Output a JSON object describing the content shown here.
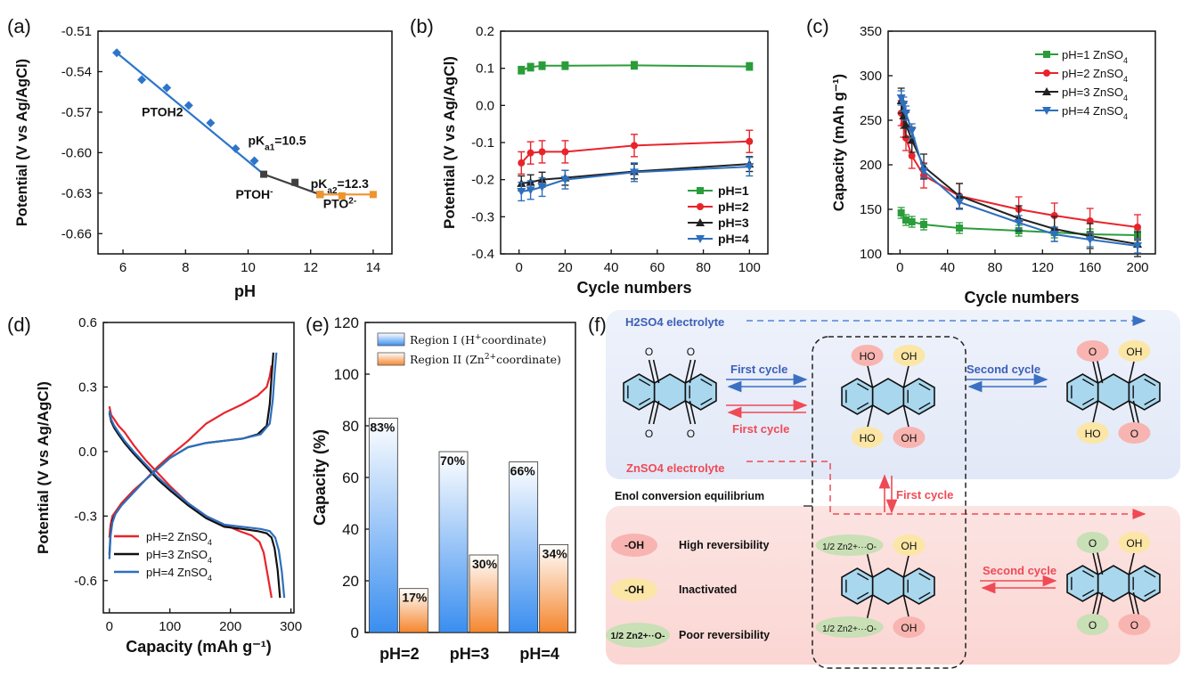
{
  "panels": {
    "a": {
      "label": "(a)"
    },
    "b": {
      "label": "(b)"
    },
    "c": {
      "label": "(c)"
    },
    "d": {
      "label": "(d)"
    },
    "e": {
      "label": "(e)"
    },
    "f": {
      "label": "(f)"
    }
  },
  "chart_data": [
    {
      "id": "a",
      "type": "line",
      "xlabel": "pH",
      "ylabel": "Potential (V vs Ag/AgCl)",
      "xlim": [
        5.2,
        14.6
      ],
      "ylim": [
        -0.675,
        -0.51
      ],
      "xticks": [
        6,
        8,
        10,
        12,
        14
      ],
      "yticks": [
        -0.51,
        -0.54,
        -0.57,
        -0.6,
        -0.63,
        -0.66
      ],
      "ytick_labels": [
        "-0.51",
        "-0.54",
        "-0.57",
        "-0.60",
        "-0.63",
        "-0.66"
      ],
      "series": [
        {
          "color": "#2e75c9",
          "marker": "diamond",
          "x": [
            5.8,
            6.6,
            7.4,
            8.1,
            8.8,
            9.6,
            10.2
          ],
          "y": [
            -0.526,
            -0.546,
            -0.552,
            -0.565,
            -0.578,
            -0.597,
            -0.606
          ]
        },
        {
          "color": "#404040",
          "marker": "square",
          "x": [
            10.5,
            11.5,
            12.3
          ],
          "y": [
            -0.616,
            -0.622,
            -0.631
          ]
        },
        {
          "color": "#f0932b",
          "marker": "square",
          "x": [
            12.3,
            13.0,
            14.0
          ],
          "y": [
            -0.631,
            -0.632,
            -0.631
          ]
        }
      ],
      "fit_lines": [
        {
          "color": "#2e75c9",
          "x": [
            5.8,
            10.5
          ],
          "y": [
            -0.526,
            -0.616
          ]
        },
        {
          "color": "#404040",
          "x": [
            10.5,
            12.3
          ],
          "y": [
            -0.616,
            -0.631
          ]
        },
        {
          "color": "#f0932b",
          "x": [
            12.3,
            14.0
          ],
          "y": [
            -0.631,
            -0.631
          ]
        }
      ],
      "annotations": [
        {
          "text": "PTOH2",
          "x": 6.6,
          "y": -0.573
        },
        {
          "text": "pKa1=10.5",
          "x": 10.0,
          "y": -0.594
        },
        {
          "text": "PTOH-",
          "x": 9.6,
          "y": -0.634
        },
        {
          "text": "pKa2=12.3",
          "x": 12.0,
          "y": -0.626
        },
        {
          "text": "PTO2-",
          "x": 12.4,
          "y": -0.641
        }
      ]
    },
    {
      "id": "b",
      "type": "line",
      "xlabel": "Cycle numbers",
      "ylabel": "Potential (V vs Ag/AgCl)",
      "xlim": [
        -8,
        108
      ],
      "ylim": [
        -0.4,
        0.2
      ],
      "xticks": [
        0,
        20,
        40,
        60,
        80,
        100
      ],
      "yticks": [
        0.2,
        0.1,
        0.0,
        -0.1,
        -0.2,
        -0.3,
        -0.4
      ],
      "ytick_labels": [
        "0.2",
        "0.1",
        "0.0",
        "-0.1",
        "-0.2",
        "-0.3",
        "-0.4"
      ],
      "legend": "bottom-right",
      "series": [
        {
          "name": "pH=1",
          "color": "#2a9d3a",
          "marker": "square",
          "x": [
            1,
            5,
            10,
            20,
            50,
            100
          ],
          "y": [
            0.095,
            0.103,
            0.107,
            0.107,
            0.108,
            0.105
          ],
          "err": 0.01
        },
        {
          "name": "pH=2",
          "color": "#e8242b",
          "marker": "circle",
          "x": [
            1,
            5,
            10,
            20,
            50,
            100
          ],
          "y": [
            -0.155,
            -0.128,
            -0.125,
            -0.125,
            -0.108,
            -0.097
          ],
          "err": 0.03
        },
        {
          "name": "pH=3",
          "color": "#222222",
          "marker": "triangle-up",
          "x": [
            1,
            5,
            10,
            20,
            50,
            100
          ],
          "y": [
            -0.21,
            -0.207,
            -0.2,
            -0.195,
            -0.178,
            -0.158
          ],
          "err": 0.02
        },
        {
          "name": "pH=4",
          "color": "#2e6fbd",
          "marker": "triangle-down",
          "x": [
            1,
            5,
            10,
            20,
            50,
            100
          ],
          "y": [
            -0.232,
            -0.228,
            -0.22,
            -0.2,
            -0.18,
            -0.165
          ],
          "err": 0.025
        }
      ]
    },
    {
      "id": "c",
      "type": "line",
      "xlabel": "Cycle numbers",
      "ylabel": "Capacity (mAh g-1)",
      "xlim": [
        -10,
        215
      ],
      "ylim": [
        100,
        350
      ],
      "xticks": [
        0,
        25,
        50,
        75,
        100,
        125,
        150,
        175,
        200
      ],
      "yticks": [
        100,
        150,
        200,
        250,
        300,
        350
      ],
      "legend": "top-right",
      "series": [
        {
          "name": "pH=1 ZnSO4",
          "color": "#2a9d3a",
          "marker": "square",
          "x": [
            1,
            5,
            10,
            20,
            50,
            100,
            130,
            160,
            200
          ],
          "y": [
            146,
            138,
            136,
            133,
            129,
            126,
            124,
            122,
            121
          ],
          "err": 6
        },
        {
          "name": "pH=2 ZnSO4",
          "color": "#e8242b",
          "marker": "circle",
          "x": [
            1,
            3,
            5,
            10,
            20,
            50,
            100,
            130,
            160,
            200
          ],
          "y": [
            258,
            245,
            230,
            210,
            188,
            165,
            150,
            143,
            137,
            130
          ],
          "err": 14
        },
        {
          "name": "pH=3 ZnSO4",
          "color": "#222222",
          "marker": "triangle-up",
          "x": [
            1,
            3,
            5,
            10,
            20,
            50,
            100,
            130,
            160,
            200
          ],
          "y": [
            272,
            255,
            245,
            228,
            198,
            165,
            140,
            128,
            120,
            111
          ],
          "err": 14
        },
        {
          "name": "pH=4 ZnSO4",
          "color": "#2e6fbd",
          "marker": "triangle-down",
          "x": [
            1,
            3,
            5,
            10,
            20,
            50,
            100,
            130,
            160,
            200
          ],
          "y": [
            275,
            268,
            258,
            238,
            193,
            158,
            135,
            122,
            116,
            109
          ],
          "err": 8
        }
      ]
    },
    {
      "id": "d",
      "type": "line",
      "xlabel": "Capacity (mAh g-1)",
      "ylabel": "Potential (V vs Ag/AgCl)",
      "xlim": [
        -10,
        305
      ],
      "ylim": [
        -0.75,
        0.6
      ],
      "xticks": [
        0,
        100,
        200,
        300
      ],
      "yticks": [
        0.6,
        0.3,
        0.0,
        -0.3,
        -0.6
      ],
      "ytick_labels": [
        "0.6",
        "0.3",
        "0.0",
        "-0.3",
        "-0.6"
      ],
      "legend": "bottom-left",
      "series": [
        {
          "name": "pH=2 ZnSO4",
          "color": "#e8242b",
          "discharge": {
            "x": [
              0,
              3,
              8,
              15,
              25,
              40,
              60,
              80,
              100,
              130,
              160,
              190,
              215,
              235,
              248,
              255,
              260,
              265,
              268
            ],
            "y": [
              0.21,
              0.17,
              0.15,
              0.12,
              0.09,
              0.03,
              -0.04,
              -0.1,
              -0.16,
              -0.24,
              -0.3,
              -0.34,
              -0.37,
              -0.39,
              -0.42,
              -0.47,
              -0.55,
              -0.63,
              -0.68
            ]
          },
          "charge": {
            "x": [
              0,
              2,
              5,
              10,
              20,
              40,
              60,
              80,
              100,
              130,
              160,
              190,
              220,
              245,
              260,
              265,
              268
            ],
            "y": [
              -0.4,
              -0.34,
              -0.3,
              -0.28,
              -0.24,
              -0.18,
              -0.13,
              -0.07,
              -0.02,
              0.05,
              0.13,
              0.18,
              0.22,
              0.26,
              0.3,
              0.35,
              0.4
            ]
          }
        },
        {
          "name": "pH=3 ZnSO4",
          "color": "#111111",
          "discharge": {
            "x": [
              0,
              3,
              8,
              15,
              25,
              40,
              60,
              80,
              100,
              130,
              160,
              190,
              220,
              245,
              260,
              268,
              273,
              278,
              282
            ],
            "y": [
              0.18,
              0.14,
              0.11,
              0.08,
              0.04,
              -0.01,
              -0.07,
              -0.13,
              -0.18,
              -0.25,
              -0.31,
              -0.35,
              -0.36,
              -0.37,
              -0.38,
              -0.4,
              -0.45,
              -0.55,
              -0.68
            ]
          },
          "charge": {
            "x": [
              0,
              2,
              5,
              10,
              20,
              40,
              60,
              80,
              100,
              130,
              160,
              190,
              220,
              245,
              260,
              265,
              268,
              271
            ],
            "y": [
              -0.48,
              -0.38,
              -0.32,
              -0.29,
              -0.25,
              -0.19,
              -0.13,
              -0.08,
              -0.03,
              0.02,
              0.04,
              0.05,
              0.06,
              0.08,
              0.12,
              0.22,
              0.35,
              0.46
            ]
          }
        },
        {
          "name": "pH=4 ZnSO4",
          "color": "#2e6fbd",
          "discharge": {
            "x": [
              0,
              3,
              8,
              15,
              25,
              40,
              60,
              80,
              100,
              130,
              160,
              190,
              220,
              250,
              265,
              274,
              280,
              285,
              289
            ],
            "y": [
              0.19,
              0.15,
              0.12,
              0.09,
              0.05,
              0.0,
              -0.06,
              -0.12,
              -0.17,
              -0.24,
              -0.3,
              -0.34,
              -0.35,
              -0.36,
              -0.37,
              -0.4,
              -0.46,
              -0.56,
              -0.68
            ]
          },
          "charge": {
            "x": [
              0,
              2,
              5,
              10,
              20,
              40,
              60,
              80,
              100,
              130,
              160,
              190,
              220,
              250,
              265,
              270,
              273,
              276
            ],
            "y": [
              -0.5,
              -0.39,
              -0.33,
              -0.29,
              -0.25,
              -0.19,
              -0.13,
              -0.08,
              -0.03,
              0.02,
              0.04,
              0.05,
              0.06,
              0.08,
              0.13,
              0.24,
              0.36,
              0.46
            ]
          }
        }
      ]
    },
    {
      "id": "e",
      "type": "bar",
      "ylabel": "Capacity (%)",
      "ylim": [
        0,
        120
      ],
      "yticks": [
        0,
        20,
        40,
        60,
        80,
        100,
        120
      ],
      "categories": [
        "pH=2",
        "pH=3",
        "pH=4"
      ],
      "legend": "top-right",
      "series": [
        {
          "name": "Region I (H+coordinate)",
          "color": "#3f8fe8",
          "values": [
            83,
            70,
            66
          ],
          "labels": [
            "83%",
            "70%",
            "66%"
          ]
        },
        {
          "name": "Region II (Zn2+coordinate)",
          "color": "#f58a3a",
          "values": [
            17,
            30,
            34
          ],
          "labels": [
            "17%",
            "30%",
            "34%"
          ]
        }
      ]
    }
  ],
  "scheme": {
    "h2so4_label": "H2SO4 electrolyte",
    "znso4_label": "ZnSO4 electrolyte",
    "first_cycle_blue": "First cycle",
    "first_cycle_red": "First cycle",
    "second_cycle_blue": "Second cycle",
    "second_cycle_red": "Second cycle",
    "first_cycle_vertical": "First cycle",
    "enol_label": "Enol conversion equilibrium",
    "legend_oh_high": "High reversibility",
    "legend_oh_inact": "Inactivated",
    "legend_zn_poor": "Poor reversibility",
    "oh_badge": "-OH",
    "zn_badge": "1/2 Zn2+··O-",
    "oh": "OH",
    "ho": "HO",
    "o": "O",
    "zn_o": "1/2 Zn2+···O-"
  }
}
